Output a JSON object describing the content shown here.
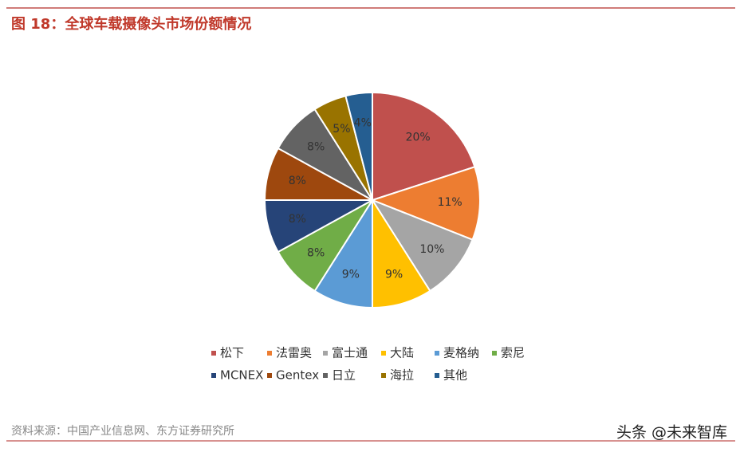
{
  "chart_data": {
    "type": "pie",
    "title": "图 18：全球车载摄像头市场份额情况",
    "categories": [
      "松下",
      "法雷奥",
      "富士通",
      "大陆",
      "麦格纳",
      "索尼",
      "MCNEX",
      "Gentex",
      "日立",
      "海拉",
      "其他"
    ],
    "values": [
      20,
      11,
      10,
      9,
      9,
      8,
      8,
      8,
      8,
      5,
      4
    ],
    "value_labels": [
      "20%",
      "11%",
      "10%",
      "9%",
      "9%",
      "8%",
      "8%",
      "8%",
      "8%",
      "5%",
      "4%"
    ],
    "colors": [
      "#c0504d",
      "#ed7d31",
      "#a5a5a5",
      "#ffc000",
      "#5b9bd5",
      "#70ad47",
      "#264478",
      "#9e480e",
      "#636363",
      "#997300",
      "#255e91"
    ],
    "source": "资料来源：中国产业信息网、东方证券研究所",
    "watermark": "头条 @未来智库"
  }
}
